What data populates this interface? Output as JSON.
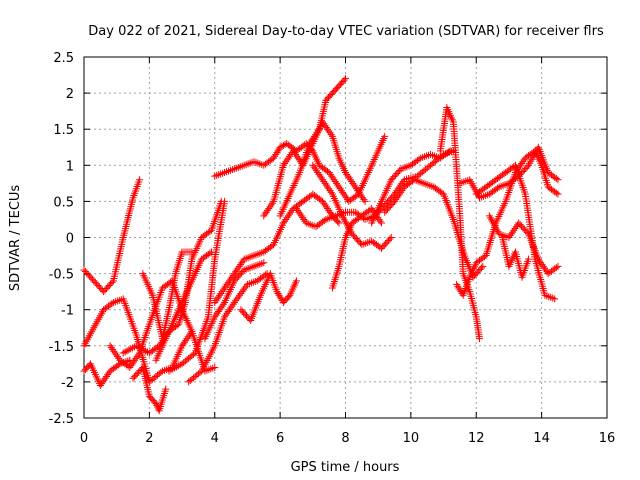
{
  "chart_data": {
    "type": "scatter",
    "title": "Day 022 of 2021, Sidereal Day-to-day VTEC variation (SDTVAR) for receiver flrs",
    "xlabel": "GPS time / hours",
    "ylabel": "SDTVAR / TECUs",
    "xlim": [
      0,
      16
    ],
    "ylim": [
      -2.5,
      2.5
    ],
    "xticks": [
      0,
      2,
      4,
      6,
      8,
      10,
      12,
      14,
      16
    ],
    "yticks": [
      -2.5,
      -2,
      -1.5,
      -1,
      -0.5,
      0,
      0.5,
      1,
      1.5,
      2,
      2.5
    ],
    "grid": true,
    "marker": "+",
    "color": "#ff0000",
    "series": [
      {
        "x": [
          0,
          0.3,
          0.6,
          0.9,
          1.2,
          1.5,
          1.7
        ],
        "y": [
          -0.45,
          -0.6,
          -0.75,
          -0.6,
          0.0,
          0.55,
          0.8
        ]
      },
      {
        "x": [
          0,
          0.3,
          0.6,
          0.9,
          1.2,
          1.6,
          2.0,
          2.4,
          2.7,
          3.0,
          3.3
        ],
        "y": [
          -1.5,
          -1.25,
          -1.0,
          -0.9,
          -0.85,
          -1.35,
          -2.0,
          -1.85,
          -1.8,
          -1.5,
          -1.3
        ]
      },
      {
        "x": [
          0,
          0.2,
          0.5,
          0.8,
          1.1,
          1.4
        ],
        "y": [
          -1.85,
          -1.75,
          -2.05,
          -1.85,
          -1.75,
          -1.7
        ]
      },
      {
        "x": [
          0.8,
          1.1,
          1.4,
          1.7,
          2.0,
          2.4,
          2.7,
          3.0,
          3.3,
          3.7,
          4.0
        ],
        "y": [
          -1.5,
          -1.7,
          -1.8,
          -1.6,
          -1.2,
          -0.7,
          -0.6,
          -1.0,
          -1.3,
          -1.85,
          -1.8
        ]
      },
      {
        "x": [
          1.2,
          1.6,
          2.0,
          2.3,
          2.6,
          2.9,
          3.1,
          3.3,
          3.6,
          3.9,
          4.2
        ],
        "y": [
          -1.6,
          -1.5,
          -1.6,
          -1.5,
          -1.3,
          -1.2,
          -0.9,
          -0.3,
          0.0,
          0.1,
          0.5
        ]
      },
      {
        "x": [
          1.5,
          1.8,
          2.0,
          2.2,
          2.3,
          2.5
        ],
        "y": [
          -1.95,
          -1.8,
          -2.2,
          -2.3,
          -2.4,
          -2.1
        ]
      },
      {
        "x": [
          1.8,
          2.1,
          2.4,
          2.6,
          2.8,
          3.0,
          3.3
        ],
        "y": [
          -0.5,
          -0.8,
          -1.4,
          -1.0,
          -0.5,
          -0.2,
          -0.2
        ]
      },
      {
        "x": [
          2.2,
          2.5,
          2.8,
          3.0,
          3.2,
          3.4,
          3.6,
          3.9
        ],
        "y": [
          -1.7,
          -1.4,
          -1.1,
          -0.9,
          -0.7,
          -0.5,
          -0.3,
          -0.2
        ]
      },
      {
        "x": [
          2.6,
          3.0,
          3.4,
          3.8,
          4.0,
          4.3
        ],
        "y": [
          -1.85,
          -1.75,
          -1.6,
          -1.1,
          -0.3,
          0.5
        ]
      },
      {
        "x": [
          3.2,
          3.6,
          4.0,
          4.3,
          4.6,
          5.0,
          5.3,
          5.6
        ],
        "y": [
          -2.0,
          -1.85,
          -1.5,
          -1.1,
          -0.9,
          -0.65,
          -0.6,
          -0.5
        ]
      },
      {
        "x": [
          3.7,
          4.0,
          4.3,
          4.6,
          4.9,
          5.2,
          5.5
        ],
        "y": [
          -1.4,
          -1.1,
          -0.9,
          -0.6,
          -0.45,
          -0.4,
          -0.35
        ]
      },
      {
        "x": [
          4.0,
          4.3,
          4.6,
          4.9,
          5.2,
          5.5,
          5.8,
          6.1,
          6.4,
          6.7,
          7.0,
          7.3,
          7.6,
          7.8
        ],
        "y": [
          -0.9,
          -0.7,
          -0.5,
          -0.3,
          -0.25,
          -0.2,
          -0.1,
          0.2,
          0.4,
          0.5,
          0.6,
          0.5,
          0.3,
          0.2
        ]
      },
      {
        "x": [
          4.8,
          5.1,
          5.4,
          5.7,
          5.9,
          6.1,
          6.3,
          6.5
        ],
        "y": [
          -1.0,
          -1.15,
          -0.8,
          -0.5,
          -0.75,
          -0.9,
          -0.8,
          -0.6
        ]
      },
      {
        "x": [
          4.0,
          4.3,
          4.6,
          4.9,
          5.2,
          5.5,
          5.8,
          6.0,
          6.2,
          6.5,
          6.8,
          7.0,
          7.2,
          7.5,
          7.8,
          8.1,
          8.4,
          8.7,
          9.0,
          9.2
        ],
        "y": [
          0.85,
          0.9,
          0.95,
          1.0,
          1.05,
          1.0,
          1.1,
          1.25,
          1.3,
          1.2,
          1.3,
          1.2,
          1.0,
          0.9,
          0.7,
          0.5,
          0.6,
          0.9,
          1.2,
          1.4
        ]
      },
      {
        "x": [
          5.5,
          5.8,
          6.1,
          6.4,
          6.7,
          7.0,
          7.3,
          7.6,
          7.8,
          8.0,
          8.3,
          8.6
        ],
        "y": [
          0.3,
          0.5,
          1.0,
          1.2,
          1.0,
          1.3,
          1.6,
          1.4,
          1.1,
          0.9,
          0.7,
          0.5
        ]
      },
      {
        "x": [
          6.0,
          6.3,
          6.6,
          6.9,
          7.2,
          7.4,
          7.6,
          7.8,
          8.0
        ],
        "y": [
          0.3,
          0.6,
          0.9,
          1.3,
          1.5,
          1.9,
          2.0,
          2.1,
          2.2
        ]
      },
      {
        "x": [
          6.5,
          6.8,
          7.1,
          7.4,
          7.7,
          8.0,
          8.3,
          8.6,
          8.9,
          9.2,
          9.5,
          9.8,
          10.2,
          10.6,
          11.0,
          11.3
        ],
        "y": [
          0.4,
          0.2,
          0.15,
          0.25,
          0.3,
          0.35,
          0.35,
          0.25,
          0.3,
          0.45,
          0.6,
          0.8,
          0.85,
          1.0,
          1.15,
          1.2
        ]
      },
      {
        "x": [
          7.0,
          7.3,
          7.6,
          7.9,
          8.2,
          8.5,
          8.8,
          9.1,
          9.4
        ],
        "y": [
          1.0,
          0.8,
          0.6,
          0.3,
          0.05,
          -0.1,
          -0.05,
          -0.15,
          0.0
        ]
      },
      {
        "x": [
          7.6,
          7.8,
          8.0,
          8.2,
          8.5,
          8.8,
          9.1
        ],
        "y": [
          -0.7,
          -0.4,
          0.0,
          0.2,
          0.3,
          0.4,
          0.2
        ]
      },
      {
        "x": [
          8.8,
          9.1,
          9.4,
          9.7,
          10.0,
          10.3,
          10.6,
          10.9,
          11.2
        ],
        "y": [
          0.2,
          0.5,
          0.8,
          0.95,
          1.0,
          1.1,
          1.15,
          1.1,
          1.2
        ]
      },
      {
        "x": [
          9.2,
          9.5,
          9.8,
          10.1,
          10.4,
          10.7,
          11.0,
          11.3,
          11.6,
          11.9,
          12.2
        ],
        "y": [
          0.35,
          0.5,
          0.7,
          0.8,
          0.75,
          0.7,
          0.6,
          0.25,
          -0.2,
          -0.55,
          -0.4
        ]
      },
      {
        "x": [
          10.9,
          11.1,
          11.3,
          11.5,
          11.6,
          11.8,
          12.0,
          12.1
        ],
        "y": [
          1.2,
          1.8,
          1.6,
          0.3,
          -0.5,
          -0.75,
          -1.1,
          -1.4
        ]
      },
      {
        "x": [
          11.4,
          11.6,
          11.8,
          12.0,
          12.3,
          12.6,
          12.9,
          13.2,
          13.5,
          13.8,
          14.0,
          14.2,
          14.5
        ],
        "y": [
          -0.65,
          -0.8,
          -0.55,
          -0.35,
          -0.25,
          0.2,
          0.5,
          0.9,
          1.1,
          1.2,
          1.0,
          0.7,
          0.6
        ]
      },
      {
        "x": [
          11.5,
          11.8,
          12.1,
          12.4,
          12.7,
          13.0,
          13.3,
          13.6,
          13.9,
          14.2,
          14.5
        ],
        "y": [
          0.75,
          0.8,
          0.55,
          0.6,
          0.7,
          0.75,
          0.85,
          1.0,
          1.25,
          0.9,
          0.8
        ]
      },
      {
        "x": [
          12.0,
          12.3,
          12.6,
          12.9,
          13.2,
          13.5,
          13.8,
          14.1,
          14.4
        ],
        "y": [
          0.6,
          0.7,
          0.8,
          0.9,
          1.0,
          0.6,
          -0.3,
          -0.8,
          -0.85
        ]
      },
      {
        "x": [
          12.4,
          12.7,
          13.0,
          13.3,
          13.6,
          13.9,
          14.2,
          14.5
        ],
        "y": [
          0.3,
          0.05,
          0.0,
          0.2,
          0.05,
          -0.3,
          -0.5,
          -0.4
        ]
      },
      {
        "x": [
          12.8,
          13.0,
          13.2,
          13.4,
          13.6
        ],
        "y": [
          0.0,
          -0.4,
          -0.2,
          -0.55,
          -0.3
        ]
      }
    ]
  }
}
